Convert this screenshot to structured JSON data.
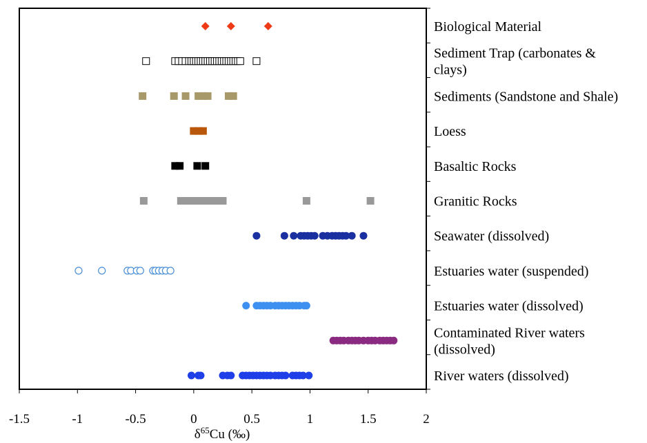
{
  "chart_data": {
    "type": "scatter",
    "title": "",
    "xlabel_main": "δ",
    "xlabel_sup": "65",
    "xlabel_rest": "Cu (‰)",
    "xlim": [
      -1.5,
      2
    ],
    "xticks": [
      "-1.5",
      "-1",
      "-0.5",
      "0",
      "0.5",
      "1",
      "1.5",
      "2"
    ],
    "xtick_values": [
      -1.5,
      -1,
      -0.5,
      0,
      0.5,
      1,
      1.5,
      2
    ],
    "grid": false,
    "legend": "none",
    "categories": [
      {
        "lines": [
          "Biological Material"
        ],
        "marker": "diamond",
        "color": "#ee3a16",
        "filled": true,
        "values": [
          0.1,
          0.32,
          0.64
        ]
      },
      {
        "lines": [
          "Sediment Trap (carbonates &",
          "clays)"
        ],
        "marker": "square-open",
        "color": "#000000",
        "filled": false,
        "values": [
          -0.41,
          -0.16,
          -0.13,
          -0.1,
          -0.07,
          -0.04,
          -0.02,
          0.0,
          0.02,
          0.04,
          0.06,
          0.08,
          0.1,
          0.12,
          0.14,
          0.16,
          0.18,
          0.2,
          0.22,
          0.24,
          0.26,
          0.28,
          0.3,
          0.32,
          0.34,
          0.36,
          0.38,
          0.4,
          0.54
        ]
      },
      {
        "lines": [
          "Sediments (Sandstone and Shale)"
        ],
        "marker": "square",
        "color": "#a8996a",
        "filled": true,
        "values": [
          -0.44,
          -0.17,
          -0.07,
          0.04,
          0.08,
          0.12,
          0.3,
          0.34
        ]
      },
      {
        "lines": [
          "Loess"
        ],
        "marker": "square",
        "color": "#b8560a",
        "filled": true,
        "values": [
          0.0,
          0.04,
          0.08
        ]
      },
      {
        "lines": [
          "Basaltic Rocks"
        ],
        "marker": "square",
        "color": "#000000",
        "filled": true,
        "values": [
          -0.16,
          -0.12,
          0.03,
          0.1
        ]
      },
      {
        "lines": [
          "Granitic Rocks"
        ],
        "marker": "square",
        "color": "#999999",
        "filled": true,
        "values": [
          -0.43,
          -0.11,
          -0.06,
          -0.02,
          0.02,
          0.06,
          0.1,
          0.14,
          0.18,
          0.22,
          0.25,
          0.97,
          1.52
        ]
      },
      {
        "lines": [
          "Seawater (dissolved)"
        ],
        "marker": "circle",
        "color": "#1a2fa0",
        "filled": true,
        "values": [
          0.54,
          0.78,
          0.86,
          0.92,
          0.95,
          0.98,
          1.01,
          1.04,
          1.11,
          1.15,
          1.19,
          1.22,
          1.25,
          1.28,
          1.31,
          1.36,
          1.46
        ]
      },
      {
        "lines": [
          "Estuaries water (suspended)"
        ],
        "marker": "circle-open",
        "color": "#4a8fd8",
        "filled": false,
        "values": [
          -0.99,
          -0.79,
          -0.57,
          -0.54,
          -0.49,
          -0.46,
          -0.35,
          -0.33,
          -0.3,
          -0.27,
          -0.24,
          -0.2
        ]
      },
      {
        "lines": [
          "Estuaries water (dissolved)"
        ],
        "marker": "circle",
        "color": "#3d8ff0",
        "filled": true,
        "values": [
          0.45,
          0.54,
          0.57,
          0.6,
          0.63,
          0.66,
          0.7,
          0.73,
          0.76,
          0.79,
          0.82,
          0.85,
          0.88,
          0.91,
          0.95,
          0.97
        ]
      },
      {
        "lines": [
          "Contaminated River waters",
          "(dissolved)"
        ],
        "marker": "circle",
        "color": "#8a2a80",
        "filled": true,
        "values": [
          1.2,
          1.23,
          1.26,
          1.29,
          1.33,
          1.36,
          1.39,
          1.42,
          1.46,
          1.5,
          1.53,
          1.56,
          1.6,
          1.63,
          1.66,
          1.69,
          1.72
        ]
      },
      {
        "lines": [
          "River waters (dissolved)"
        ],
        "marker": "circle",
        "color": "#1f3fe8",
        "filled": true,
        "values": [
          -0.02,
          0.04,
          0.06,
          0.25,
          0.29,
          0.32,
          0.42,
          0.45,
          0.48,
          0.51,
          0.54,
          0.57,
          0.6,
          0.63,
          0.66,
          0.7,
          0.73,
          0.76,
          0.79,
          0.85,
          0.88,
          0.91,
          0.94,
          0.99
        ]
      }
    ]
  }
}
